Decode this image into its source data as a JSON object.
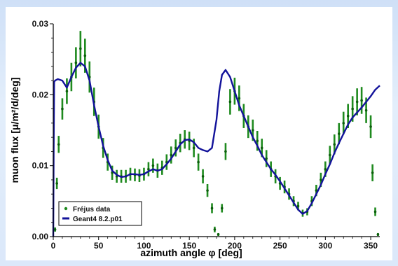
{
  "chart_data": {
    "type": "line",
    "xlabel": "azimuth angle φ [deg]",
    "ylabel": "muon flux [μ/m²/d/deg]",
    "xlim": [
      0,
      360
    ],
    "ylim": [
      0,
      0.03
    ],
    "x_ticks": [
      "0",
      "50",
      "100",
      "150",
      "200",
      "250",
      "300",
      "350"
    ],
    "y_ticks": [
      "0.00",
      "0.01",
      "0.02",
      "0.03"
    ],
    "legend_position": "bottom-left",
    "series": [
      {
        "name": "Fréjus data",
        "style": "points-with-errorbars",
        "color": "#1f8a1f",
        "x": [
          2,
          4,
          6,
          10,
          15,
          20,
          25,
          30,
          35,
          40,
          45,
          50,
          55,
          60,
          65,
          70,
          75,
          80,
          85,
          90,
          95,
          100,
          105,
          110,
          115,
          120,
          125,
          130,
          135,
          140,
          145,
          150,
          155,
          160,
          165,
          170,
          175,
          178,
          182,
          186,
          190,
          195,
          200,
          205,
          210,
          215,
          220,
          225,
          230,
          235,
          240,
          245,
          250,
          255,
          260,
          265,
          270,
          275,
          280,
          285,
          290,
          295,
          300,
          305,
          310,
          315,
          320,
          325,
          330,
          335,
          340,
          345,
          350,
          352,
          355,
          358
        ],
        "y": [
          0.001,
          0.0075,
          0.013,
          0.018,
          0.0205,
          0.0225,
          0.0245,
          0.0265,
          0.0255,
          0.0225,
          0.019,
          0.0155,
          0.0125,
          0.0105,
          0.009,
          0.0085,
          0.0085,
          0.0085,
          0.0088,
          0.0087,
          0.0086,
          0.0088,
          0.0095,
          0.01,
          0.0093,
          0.0097,
          0.0105,
          0.0115,
          0.0125,
          0.0132,
          0.0137,
          0.0135,
          0.0125,
          0.0105,
          0.0085,
          0.0065,
          0.004,
          0.001,
          0.0003,
          0.004,
          0.012,
          0.019,
          0.0205,
          0.0195,
          0.017,
          0.0155,
          0.015,
          0.0135,
          0.0125,
          0.011,
          0.0095,
          0.0085,
          0.0075,
          0.007,
          0.006,
          0.005,
          0.0043,
          0.0033,
          0.0035,
          0.005,
          0.0065,
          0.008,
          0.0095,
          0.0115,
          0.013,
          0.0145,
          0.016,
          0.017,
          0.018,
          0.019,
          0.0192,
          0.0178,
          0.0155,
          0.009,
          0.0035,
          0.0003
        ],
        "err": [
          0.0003,
          0.0008,
          0.0012,
          0.0015,
          0.0018,
          0.002,
          0.0022,
          0.0025,
          0.0024,
          0.0022,
          0.002,
          0.0017,
          0.0014,
          0.0012,
          0.001,
          0.0009,
          0.0009,
          0.0009,
          0.0009,
          0.0009,
          0.0009,
          0.0009,
          0.001,
          0.001,
          0.001,
          0.001,
          0.0011,
          0.0012,
          0.0012,
          0.0013,
          0.0013,
          0.0013,
          0.0013,
          0.0012,
          0.001,
          0.0009,
          0.0007,
          0.0004,
          0.0002,
          0.0006,
          0.0012,
          0.0018,
          0.0019,
          0.0018,
          0.0017,
          0.0016,
          0.0015,
          0.0014,
          0.0013,
          0.0012,
          0.0011,
          0.001,
          0.0009,
          0.0009,
          0.0008,
          0.0007,
          0.0006,
          0.0005,
          0.0005,
          0.0007,
          0.0008,
          0.001,
          0.0011,
          0.0013,
          0.0014,
          0.0015,
          0.0016,
          0.0017,
          0.0018,
          0.0019,
          0.0019,
          0.0018,
          0.0016,
          0.0012,
          0.0006,
          0.0002
        ]
      },
      {
        "name": "Geant4 8.2.p01",
        "style": "line",
        "color": "#12129a",
        "x": [
          0,
          0.5,
          1,
          2,
          5,
          10,
          15,
          20,
          25,
          30,
          35,
          40,
          45,
          50,
          55,
          60,
          65,
          70,
          75,
          80,
          85,
          90,
          95,
          100,
          105,
          110,
          115,
          120,
          125,
          130,
          135,
          140,
          145,
          150,
          155,
          160,
          165,
          170,
          175,
          180,
          183,
          186,
          190,
          195,
          200,
          205,
          210,
          215,
          220,
          225,
          230,
          235,
          240,
          245,
          250,
          255,
          260,
          265,
          270,
          275,
          280,
          285,
          290,
          295,
          300,
          305,
          310,
          315,
          320,
          325,
          330,
          335,
          340,
          345,
          350,
          355,
          360
        ],
        "y": [
          0,
          0.012,
          0.0218,
          0.022,
          0.0222,
          0.022,
          0.021,
          0.0225,
          0.0238,
          0.0245,
          0.024,
          0.022,
          0.0185,
          0.0155,
          0.0128,
          0.0108,
          0.0093,
          0.0087,
          0.0084,
          0.0085,
          0.0088,
          0.0088,
          0.0087,
          0.0088,
          0.0092,
          0.0095,
          0.0093,
          0.0095,
          0.0102,
          0.011,
          0.012,
          0.013,
          0.0136,
          0.0137,
          0.0133,
          0.0125,
          0.0122,
          0.012,
          0.0125,
          0.0165,
          0.0205,
          0.0228,
          0.0235,
          0.0225,
          0.0205,
          0.0185,
          0.017,
          0.0155,
          0.014,
          0.0128,
          0.0115,
          0.0105,
          0.0095,
          0.0087,
          0.0078,
          0.0068,
          0.0058,
          0.0048,
          0.0038,
          0.0032,
          0.0036,
          0.0047,
          0.006,
          0.0073,
          0.0088,
          0.0102,
          0.0118,
          0.0132,
          0.0145,
          0.0158,
          0.0168,
          0.0175,
          0.0182,
          0.019,
          0.0198,
          0.0207,
          0.0213
        ]
      }
    ]
  }
}
